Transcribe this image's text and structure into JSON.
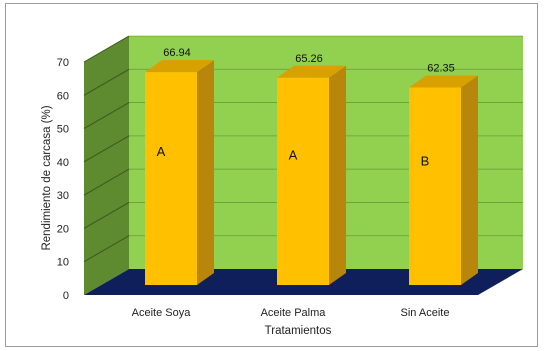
{
  "chart_data": {
    "type": "bar",
    "categories": [
      "Aceite Soya",
      "Aceite Palma",
      "Sin Aceite"
    ],
    "values": [
      66.94,
      65.26,
      62.35
    ],
    "data_labels": [
      "66.94",
      "65.26",
      "62.35"
    ],
    "group_letters": [
      "A",
      "A",
      "B"
    ],
    "title": "",
    "xlabel": "Tratamientos",
    "ylabel": "Rendimiento de carcasa (%)",
    "ylim": [
      0,
      70
    ],
    "yticks": [
      "0",
      "10",
      "20",
      "30",
      "40",
      "50",
      "60",
      "70"
    ],
    "grid": true,
    "legend": "none",
    "style": "3d-column",
    "colors": {
      "bar_front": "#FFC000",
      "bar_side": "#B8860B",
      "bar_top": "#D9A100",
      "back_wall": "#92D050",
      "side_wall": "#5E8A30",
      "floor": "#0F1F5C",
      "gridline": "#3A5A1A"
    }
  }
}
